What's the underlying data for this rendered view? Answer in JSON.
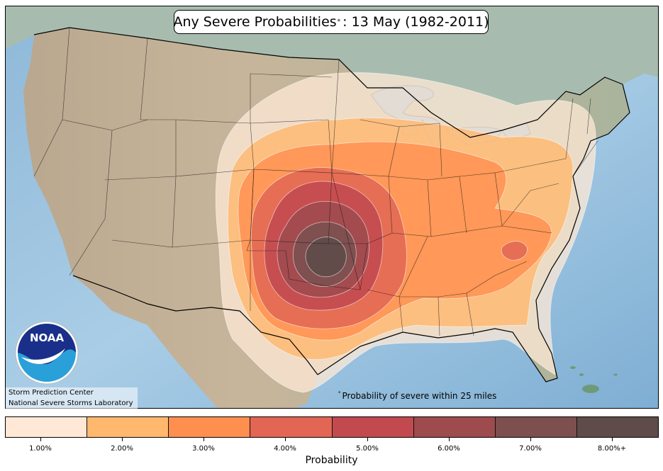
{
  "title": {
    "main": "Any Severe Probabilities",
    "marker": "*",
    "suffix": ": 13 May (1982-2011)"
  },
  "footnote": {
    "marker": "*",
    "text": "Probability of severe within 25 miles"
  },
  "credits": [
    "Storm Prediction Center",
    "National Severe Storms Laboratory"
  ],
  "logo": {
    "text": "NOAA"
  },
  "legend": {
    "title": "Probability",
    "levels": [
      {
        "label": "1.00%",
        "color": "#ffe9d6"
      },
      {
        "label": "2.00%",
        "color": "#ffb86e"
      },
      {
        "label": "3.00%",
        "color": "#ff8f4f"
      },
      {
        "label": "4.00%",
        "color": "#e26653"
      },
      {
        "label": "5.00%",
        "color": "#c24a4f"
      },
      {
        "label": "6.00%",
        "color": "#9e4b4e"
      },
      {
        "label": "7.00%",
        "color": "#7d4f4f"
      },
      {
        "label": "8.00%+",
        "color": "#5f4c4a"
      }
    ]
  },
  "colors": {
    "ocean": "#9ec3e0",
    "land": "#c6b39a",
    "canada": "#a9bdb2",
    "mexico": "#bfae92"
  }
}
